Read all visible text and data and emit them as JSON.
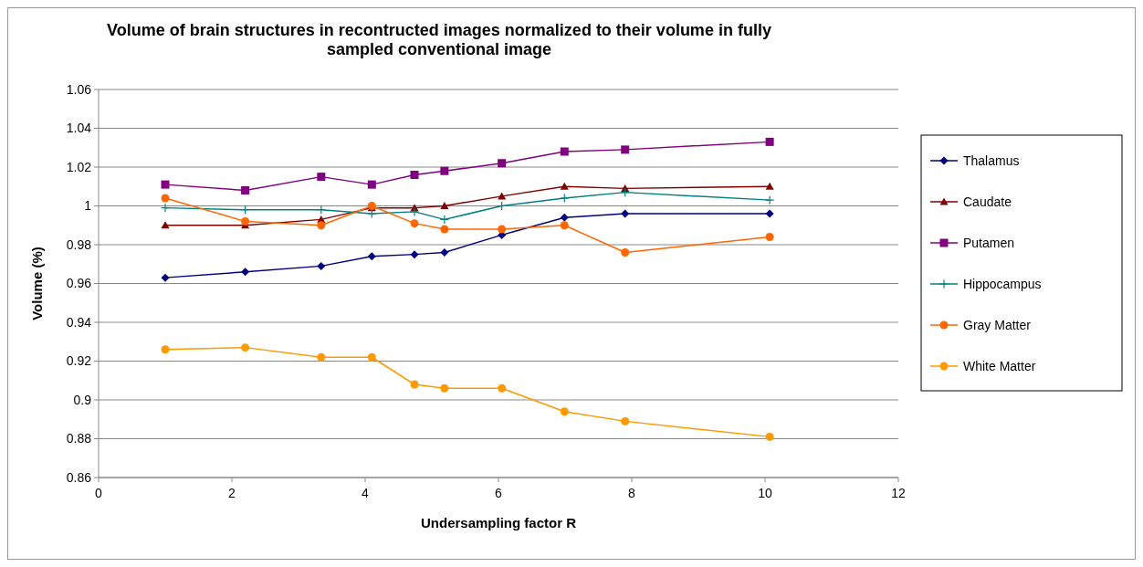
{
  "chart_data": {
    "type": "line",
    "title": "Volume of brain structures in recontructed images normalized to their volume in fully sampled conventional image",
    "xlabel": "Undersampling factor R",
    "ylabel": "Volume (%)",
    "xlim": [
      0,
      12
    ],
    "xticks": [
      0,
      2,
      4,
      6,
      8,
      10,
      12
    ],
    "ylim": [
      0.86,
      1.06
    ],
    "yticks": [
      0.86,
      0.88,
      0.9,
      0.92,
      0.94,
      0.96,
      0.98,
      1,
      1.02,
      1.04,
      1.06
    ],
    "grid": "y",
    "legend": "right",
    "x": [
      1,
      2.2,
      3.34,
      4.1,
      4.74,
      5.19,
      6.05,
      6.99,
      7.9,
      10.07
    ],
    "series": [
      {
        "name": "Thalamus",
        "color": "#000080",
        "marker": "diamond",
        "values": [
          0.963,
          0.966,
          0.969,
          0.974,
          0.975,
          0.976,
          0.985,
          0.994,
          0.996,
          0.996
        ]
      },
      {
        "name": "Caudate",
        "color": "#800000",
        "marker": "triangle",
        "values": [
          0.99,
          0.99,
          0.993,
          0.999,
          0.999,
          1.0,
          1.005,
          1.01,
          1.009,
          1.01
        ]
      },
      {
        "name": "Putamen",
        "color": "#800080",
        "marker": "square",
        "values": [
          1.011,
          1.008,
          1.015,
          1.011,
          1.016,
          1.018,
          1.022,
          1.028,
          1.029,
          1.033
        ]
      },
      {
        "name": "Hippocampus",
        "color": "#008080",
        "marker": "cross",
        "values": [
          0.999,
          0.998,
          0.998,
          0.996,
          0.997,
          0.993,
          1.0,
          1.004,
          1.007,
          1.003
        ]
      },
      {
        "name": "Gray Matter",
        "color": "#ff6600",
        "marker": "circle",
        "values": [
          1.004,
          0.992,
          0.99,
          1.0,
          0.991,
          0.988,
          0.988,
          0.99,
          0.976,
          0.984
        ]
      },
      {
        "name": "White Matter",
        "color": "#ff9900",
        "marker": "circle",
        "values": [
          0.926,
          0.927,
          0.922,
          0.922,
          0.908,
          0.906,
          0.906,
          0.894,
          0.889,
          0.881
        ]
      }
    ]
  }
}
